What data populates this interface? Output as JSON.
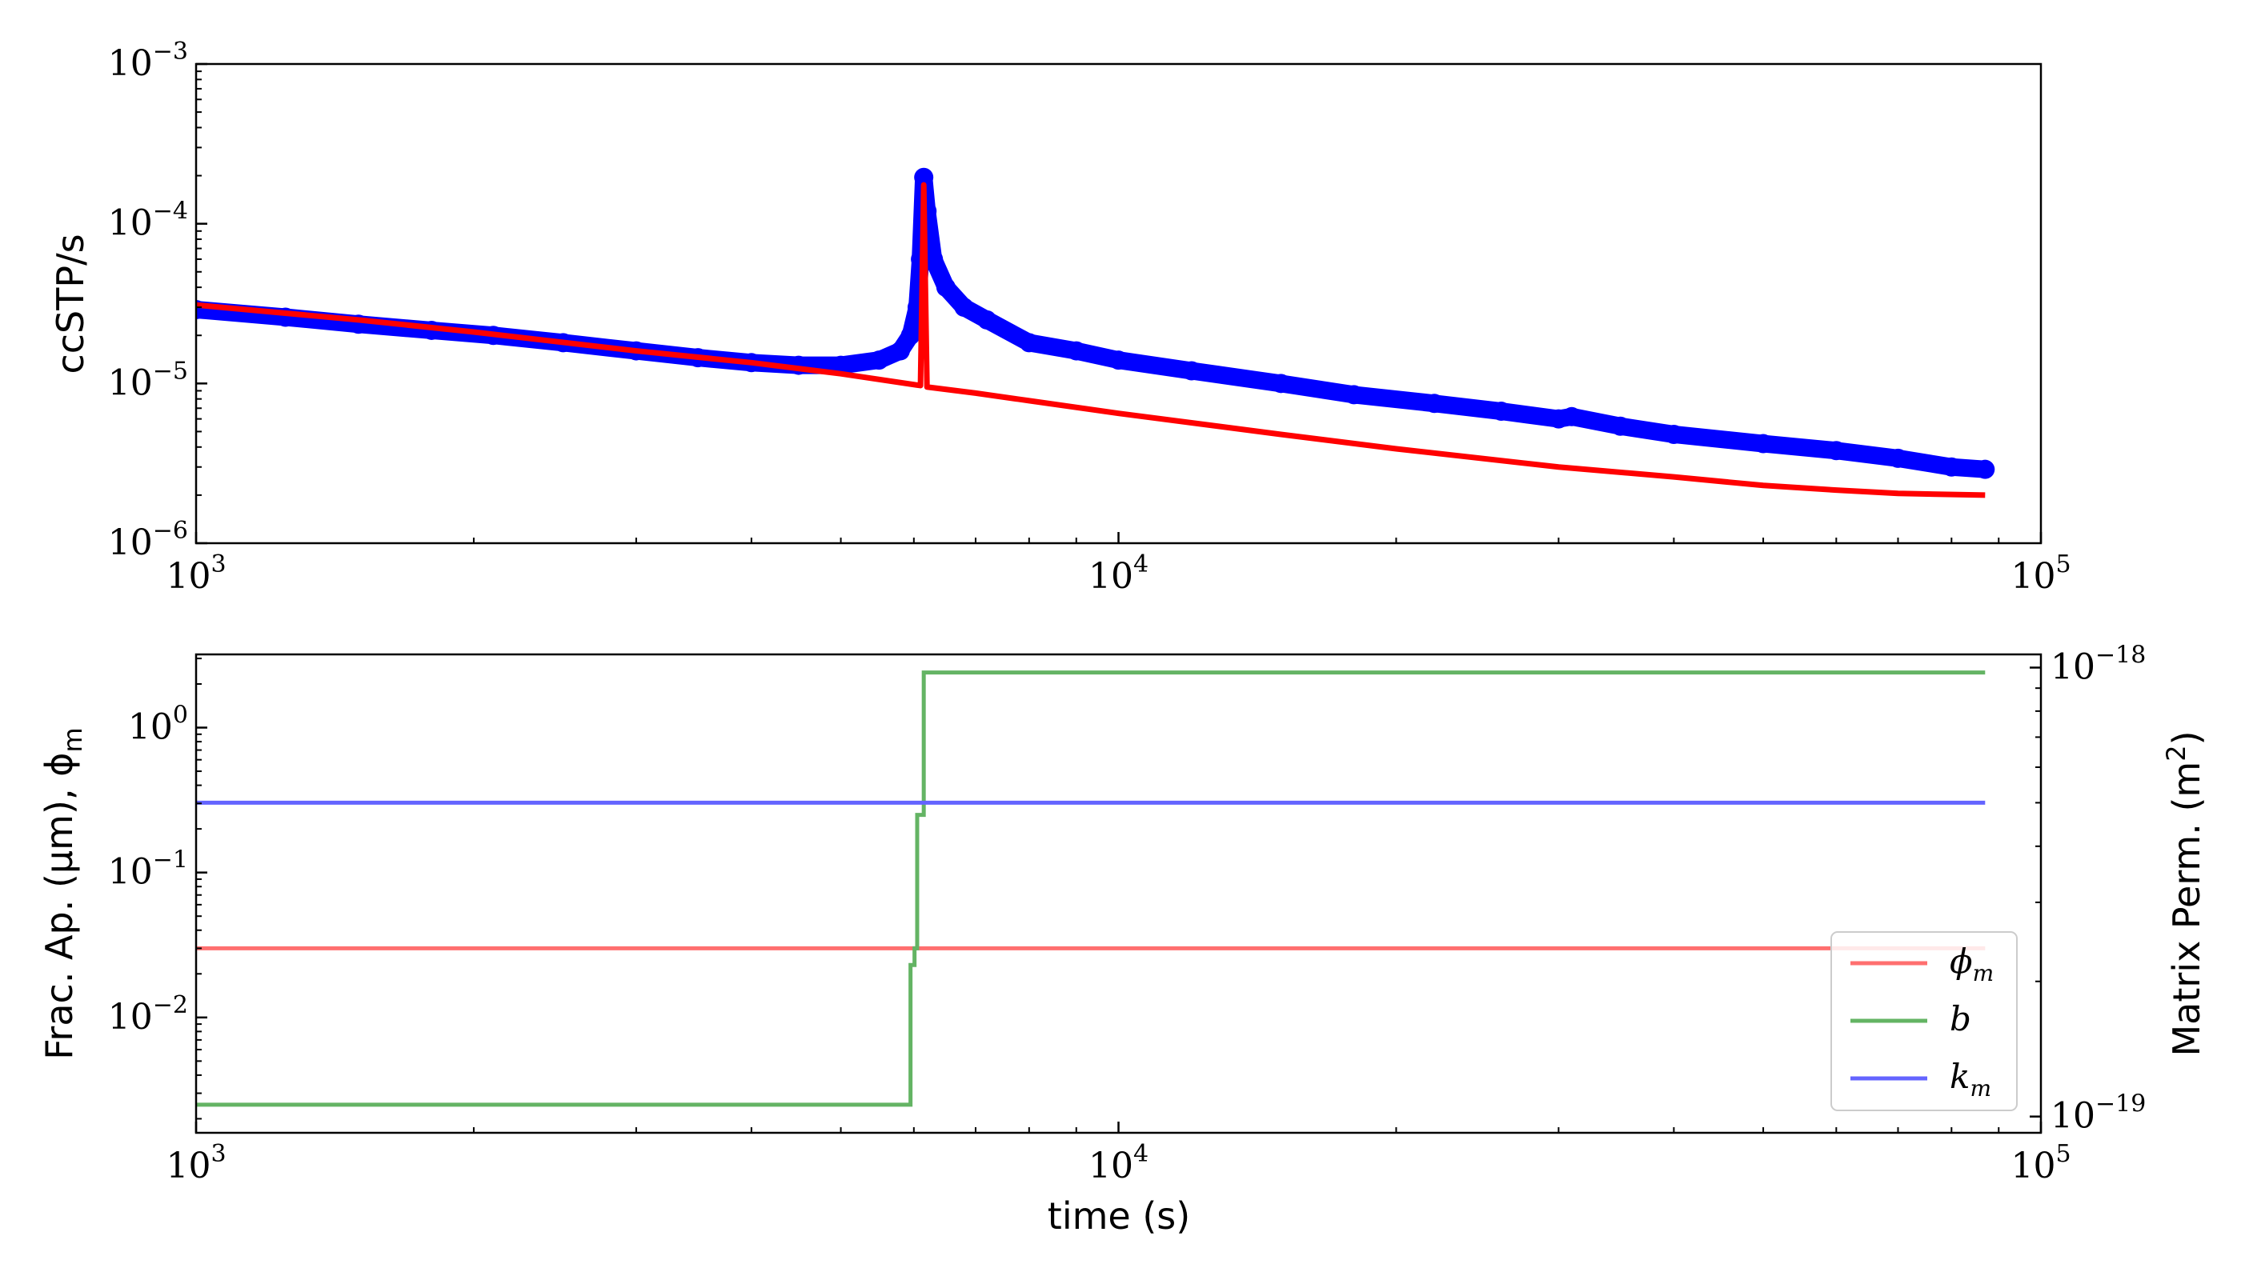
{
  "chart_data": [
    {
      "type": "scatter",
      "panel": "top",
      "title": "",
      "xlabel": "",
      "ylabel": "ccSTP/s",
      "xscale": "log",
      "yscale": "log",
      "xlim": [
        1000,
        100000
      ],
      "ylim": [
        1e-06,
        0.001
      ],
      "x_ticks": [
        {
          "value": 1000,
          "base": "10",
          "exp": "3"
        },
        {
          "value": 10000,
          "base": "10",
          "exp": "4"
        },
        {
          "value": 100000,
          "base": "10",
          "exp": "5"
        }
      ],
      "y_ticks": [
        {
          "value": 1e-06,
          "base": "10",
          "exp": "−6"
        },
        {
          "value": 1e-05,
          "base": "10",
          "exp": "−5"
        },
        {
          "value": 0.0001,
          "base": "10",
          "exp": "−4"
        },
        {
          "value": 0.001,
          "base": "10",
          "exp": "−3"
        }
      ],
      "grid": false,
      "legend": false,
      "series": [
        {
          "color": "#0000ff",
          "marker": "circle",
          "points": [
            [
              1000,
              2.9e-05
            ],
            [
              1250,
              2.6e-05
            ],
            [
              1500,
              2.35e-05
            ],
            [
              1800,
              2.15e-05
            ],
            [
              2100,
              2e-05
            ],
            [
              2500,
              1.8e-05
            ],
            [
              3000,
              1.6e-05
            ],
            [
              3500,
              1.45e-05
            ],
            [
              4000,
              1.35e-05
            ],
            [
              4500,
              1.3e-05
            ],
            [
              5000,
              1.3e-05
            ],
            [
              5500,
              1.4e-05
            ],
            [
              5800,
              1.6e-05
            ],
            [
              5950,
              2e-05
            ],
            [
              6050,
              3e-05
            ],
            [
              6100,
              6e-05
            ],
            [
              6150,
              0.000195
            ],
            [
              6200,
              0.00012
            ],
            [
              6300,
              6e-05
            ],
            [
              6500,
              4e-05
            ],
            [
              6800,
              3e-05
            ],
            [
              7200,
              2.5e-05
            ],
            [
              8000,
              1.8e-05
            ],
            [
              9000,
              1.6e-05
            ],
            [
              10000,
              1.4e-05
            ],
            [
              12000,
              1.2e-05
            ],
            [
              15000,
              1e-05
            ],
            [
              18000,
              8.5e-06
            ],
            [
              22000,
              7.5e-06
            ],
            [
              26000,
              6.7e-06
            ],
            [
              30000,
              6e-06
            ],
            [
              31000,
              6.2e-06
            ],
            [
              35000,
              5.4e-06
            ],
            [
              40000,
              4.8e-06
            ],
            [
              50000,
              4.2e-06
            ],
            [
              60000,
              3.8e-06
            ],
            [
              70000,
              3.4e-06
            ],
            [
              80000,
              3e-06
            ],
            [
              87000,
              2.9e-06
            ]
          ]
        },
        {
          "color": "#ff0000",
          "marker": "line",
          "points": [
            [
              1000,
              3.1e-05
            ],
            [
              1500,
              2.5e-05
            ],
            [
              2000,
              2.1e-05
            ],
            [
              3000,
              1.6e-05
            ],
            [
              4000,
              1.35e-05
            ],
            [
              5000,
              1.15e-05
            ],
            [
              6100,
              9.7e-06
            ],
            [
              6150,
              0.000175
            ],
            [
              6200,
              9.5e-06
            ],
            [
              7000,
              8.7e-06
            ],
            [
              8000,
              7.8e-06
            ],
            [
              10000,
              6.5e-06
            ],
            [
              15000,
              4.8e-06
            ],
            [
              20000,
              3.9e-06
            ],
            [
              30000,
              3e-06
            ],
            [
              40000,
              2.6e-06
            ],
            [
              50000,
              2.3e-06
            ],
            [
              60000,
              2.15e-06
            ],
            [
              70000,
              2.05e-06
            ],
            [
              87000,
              2e-06
            ]
          ]
        }
      ]
    },
    {
      "type": "line",
      "panel": "bottom",
      "title": "",
      "xlabel": "time (s)",
      "ylabel": "Frac. Ap. (μm), ϕ",
      "ylabel_sub": "m",
      "y2label": "Matrix Perm. (m",
      "y2label_sup": "2",
      "y2label_end": ")",
      "xscale": "log",
      "yscale": "log",
      "y2scale": "log",
      "xlim": [
        1000,
        100000
      ],
      "ylim": [
        0.0016,
        3.2
      ],
      "y2lim": [
        9.2e-20,
        1.07e-18
      ],
      "x_ticks": [
        {
          "value": 1000,
          "base": "10",
          "exp": "3"
        },
        {
          "value": 10000,
          "base": "10",
          "exp": "4"
        },
        {
          "value": 100000,
          "base": "10",
          "exp": "5"
        }
      ],
      "y_ticks": [
        {
          "value": 0.01,
          "base": "10",
          "exp": "−2"
        },
        {
          "value": 0.1,
          "base": "10",
          "exp": "−1"
        },
        {
          "value": 1,
          "base": "10",
          "exp": "0"
        }
      ],
      "y2_ticks": [
        {
          "value": 1e-19,
          "base": "10",
          "exp": "−19"
        },
        {
          "value": 1e-18,
          "base": "10",
          "exp": "−18"
        }
      ],
      "grid": false,
      "legend": "lower-right",
      "series": [
        {
          "name": "ϕ",
          "sub": "m",
          "color": "#ff6f6f",
          "axis": "left",
          "points": [
            [
              1000,
              0.03
            ],
            [
              87000,
              0.03
            ]
          ]
        },
        {
          "name": "b",
          "sub": "",
          "color": "#64b464",
          "axis": "left",
          "points": [
            [
              1000,
              0.0025
            ],
            [
              5950,
              0.0025
            ],
            [
              5950,
              0.023
            ],
            [
              6010,
              0.023
            ],
            [
              6010,
              0.03
            ],
            [
              6050,
              0.03
            ],
            [
              6050,
              0.25
            ],
            [
              6150,
              0.25
            ],
            [
              6150,
              2.4
            ],
            [
              87000,
              2.4
            ]
          ]
        },
        {
          "name": "k",
          "sub": "m",
          "color": "#6464ff",
          "axis": "right",
          "points": [
            [
              1000,
              5e-19
            ],
            [
              87000,
              5e-19
            ]
          ]
        }
      ]
    }
  ]
}
